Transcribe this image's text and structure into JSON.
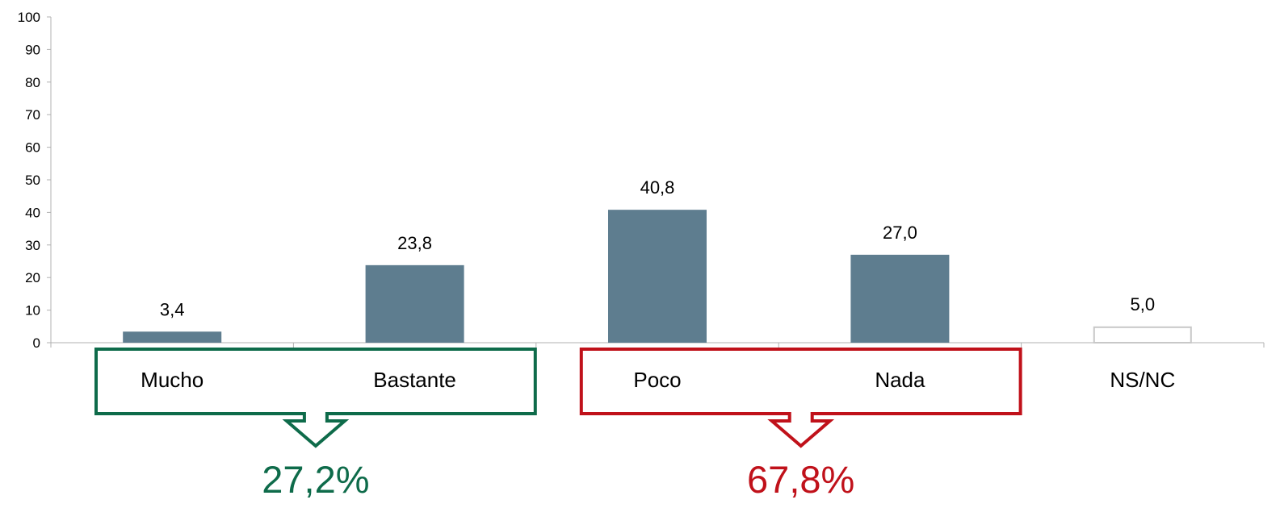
{
  "chart_data": {
    "type": "bar",
    "categories": [
      "Mucho",
      "Bastante",
      "Poco",
      "Nada",
      "NS/NC"
    ],
    "values": [
      3.4,
      23.8,
      40.8,
      27.0,
      5.0
    ],
    "value_labels": [
      "3,4",
      "23,8",
      "40,8",
      "27,0",
      "5,0"
    ],
    "ylim": [
      0,
      100
    ],
    "yticks": [
      0,
      10,
      20,
      30,
      40,
      50,
      60,
      70,
      80,
      90,
      100
    ],
    "title": "",
    "xlabel": "",
    "ylabel": "",
    "grid": false,
    "bar_color": "#5e7d8f",
    "outline_bar_color": "#c8c8c8",
    "outline_categories": [
      "NS/NC"
    ],
    "groups": [
      {
        "categories": [
          "Mucho",
          "Bastante"
        ],
        "total_label": "27,2%",
        "total_value": 27.2,
        "color": "#0e6b4a"
      },
      {
        "categories": [
          "Poco",
          "Nada"
        ],
        "total_label": "67,8%",
        "total_value": 67.8,
        "color": "#c0111a"
      }
    ]
  }
}
